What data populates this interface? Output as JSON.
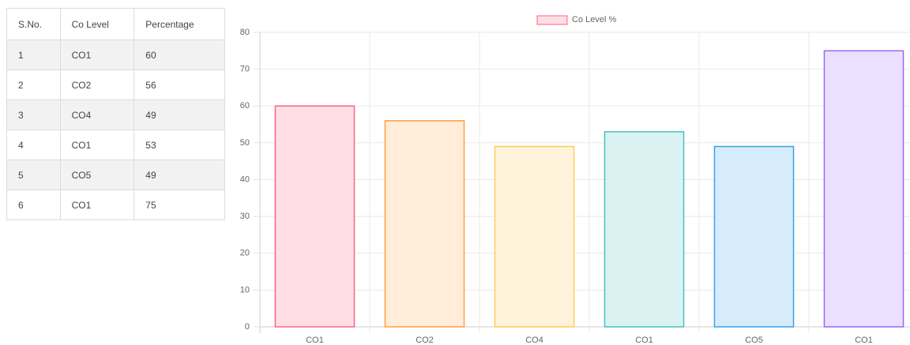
{
  "table": {
    "header": [
      "S.No.",
      "Co Level",
      "Percentage"
    ],
    "rows": [
      [
        "1",
        "CO1",
        "60"
      ],
      [
        "2",
        "CO2",
        "56"
      ],
      [
        "3",
        "CO4",
        "49"
      ],
      [
        "4",
        "CO1",
        "53"
      ],
      [
        "5",
        "CO5",
        "49"
      ],
      [
        "6",
        "CO1",
        "75"
      ]
    ]
  },
  "chart_data": {
    "type": "bar",
    "legend": "Co Level %",
    "categories": [
      "CO1",
      "CO2",
      "CO4",
      "CO1",
      "CO5",
      "CO1"
    ],
    "values": [
      60,
      56,
      49,
      53,
      49,
      75
    ],
    "colors": [
      "#ffdfe5",
      "#ffecd9",
      "#fff4db",
      "#dbf2f2",
      "#d7ecfb",
      "#ebe0ff"
    ],
    "border_colors": [
      "#ff6384",
      "#ff9f40",
      "#ffcd56",
      "#4bc0c0",
      "#36a2eb",
      "#9966ff"
    ],
    "ylim": [
      0,
      80
    ],
    "yticks": [
      0,
      10,
      20,
      30,
      40,
      50,
      60,
      70,
      80
    ],
    "grid": true,
    "legend_position": "top"
  }
}
